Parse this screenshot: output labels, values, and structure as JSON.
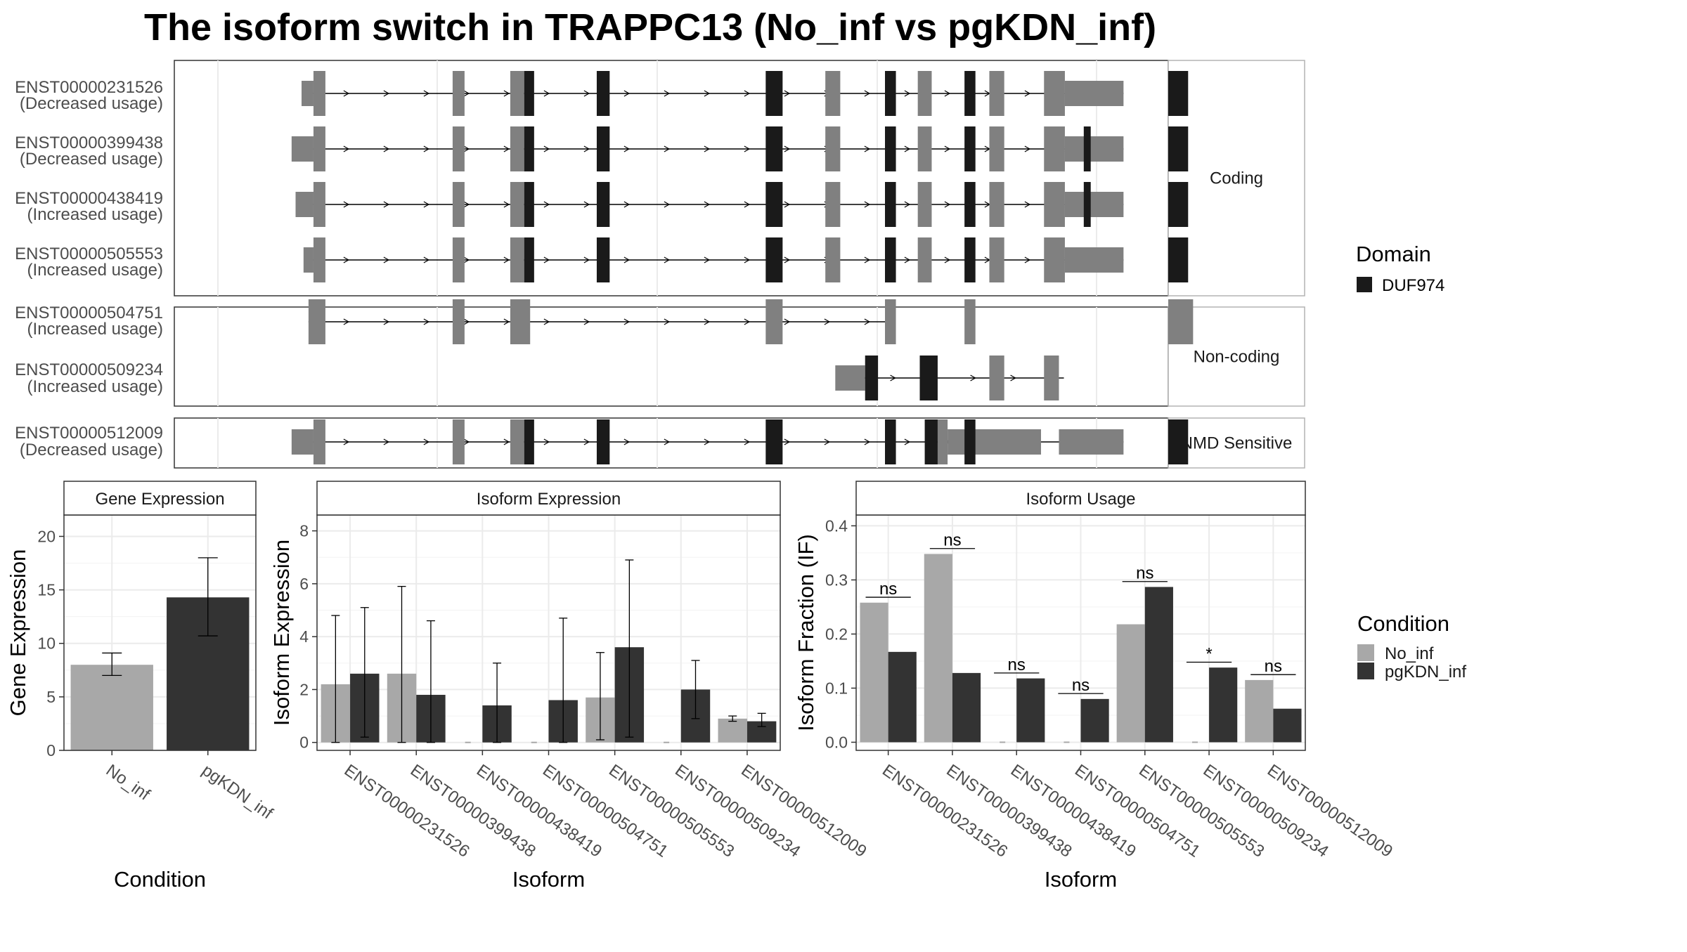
{
  "title": "The isoform switch in TRAPPC13 (No_inf vs pgKDN_inf)",
  "colors": {
    "exon_utr": "#808080",
    "exon_domain": "#1a1a1a",
    "no_inf": "#a8a8a8",
    "pgkdn_inf": "#333333",
    "panel_border": "#333333",
    "grid": "#ebebeb",
    "strip_fill": "#ffffff"
  },
  "structure": {
    "x_range": [
      0,
      100
    ],
    "groups": [
      {
        "label": "Coding",
        "isoforms": [
          {
            "id": "ENST00000231526",
            "usage": "(Decreased usage)",
            "span": [
              13.5,
              95.5
            ],
            "utr": [
              [
                12.8,
                14.0,
                "half"
              ],
              [
                14.0,
                15.2,
                "full"
              ],
              [
                28.0,
                29.2,
                "full"
              ],
              [
                33.8,
                35.2,
                "full"
              ],
              [
                65.5,
                67.0,
                "full"
              ],
              [
                74.8,
                76.2,
                "full"
              ],
              [
                82.0,
                83.5,
                "full"
              ],
              [
                87.5,
                89.6,
                "full"
              ],
              [
                89.6,
                95.5,
                "half"
              ]
            ],
            "domain": [
              [
                35.2,
                36.2
              ],
              [
                42.5,
                43.8
              ],
              [
                59.5,
                61.2
              ],
              [
                71.5,
                72.6
              ],
              [
                79.5,
                80.6
              ],
              [
                100.0,
                102.0
              ],
              [
                110.5,
                111.8
              ]
            ]
          },
          {
            "id": "ENST00000399438",
            "usage": "(Decreased usage)",
            "span": [
              13.5,
              95.5
            ],
            "utr": [
              [
                11.8,
                14.0,
                "half"
              ],
              [
                14.0,
                15.2,
                "full"
              ],
              [
                28.0,
                29.2,
                "full"
              ],
              [
                33.8,
                35.2,
                "full"
              ],
              [
                65.5,
                67.0,
                "full"
              ],
              [
                74.8,
                76.2,
                "full"
              ],
              [
                82.0,
                83.5,
                "full"
              ],
              [
                87.5,
                89.6,
                "full"
              ],
              [
                89.6,
                95.5,
                "half"
              ]
            ],
            "domain": [
              [
                35.2,
                36.2
              ],
              [
                42.5,
                43.8
              ],
              [
                59.5,
                61.2
              ],
              [
                71.5,
                72.6
              ],
              [
                79.5,
                80.6
              ],
              [
                91.5,
                92.2
              ],
              [
                100.0,
                102.0
              ],
              [
                110.5,
                111.8
              ]
            ]
          },
          {
            "id": "ENST00000438419",
            "usage": "(Increased usage)",
            "span": [
              13.5,
              95.5
            ],
            "utr": [
              [
                12.2,
                14.0,
                "half"
              ],
              [
                14.0,
                15.2,
                "full"
              ],
              [
                28.0,
                29.2,
                "full"
              ],
              [
                33.8,
                35.2,
                "full"
              ],
              [
                65.5,
                67.0,
                "full"
              ],
              [
                74.8,
                76.2,
                "full"
              ],
              [
                82.0,
                83.5,
                "full"
              ],
              [
                87.5,
                89.6,
                "full"
              ],
              [
                89.6,
                95.5,
                "half"
              ]
            ],
            "domain": [
              [
                35.2,
                36.2
              ],
              [
                42.5,
                43.8
              ],
              [
                59.5,
                61.2
              ],
              [
                71.5,
                72.6
              ],
              [
                79.5,
                80.6
              ],
              [
                91.5,
                92.2
              ],
              [
                100.0,
                102.0
              ],
              [
                110.5,
                111.8
              ]
            ]
          },
          {
            "id": "ENST00000505553",
            "usage": "(Increased usage)",
            "span": [
              13.5,
              95.5
            ],
            "utr": [
              [
                13.0,
                14.0,
                "half"
              ],
              [
                14.0,
                15.2,
                "full"
              ],
              [
                28.0,
                29.2,
                "full"
              ],
              [
                33.8,
                35.2,
                "full"
              ],
              [
                65.5,
                67.0,
                "full"
              ],
              [
                74.8,
                76.2,
                "full"
              ],
              [
                82.0,
                83.5,
                "full"
              ],
              [
                87.5,
                89.6,
                "full"
              ],
              [
                89.6,
                95.5,
                "half"
              ]
            ],
            "domain": [
              [
                35.2,
                36.2
              ],
              [
                42.5,
                43.8
              ],
              [
                59.5,
                61.2
              ],
              [
                71.5,
                72.6
              ],
              [
                79.5,
                80.6
              ],
              [
                100.0,
                102.0
              ],
              [
                110.5,
                111.8
              ]
            ]
          }
        ]
      },
      {
        "label": "Non-coding",
        "isoforms": [
          {
            "id": "ENST00000504751",
            "usage": "(Increased usage)",
            "span": [
              13.5,
              72.5
            ],
            "utr": [
              [
                13.5,
                15.2,
                "full"
              ],
              [
                28.0,
                29.2,
                "full"
              ],
              [
                33.8,
                35.8,
                "full"
              ],
              [
                59.5,
                61.2,
                "full"
              ],
              [
                71.5,
                72.6,
                "full"
              ],
              [
                79.5,
                80.6,
                "full"
              ],
              [
                100.0,
                102.5,
                "full"
              ]
            ],
            "domain": []
          },
          {
            "id": "ENST00000509234",
            "usage": "(Increased usage)",
            "span": [
              68.5,
              89.5
            ],
            "utr": [
              [
                66.5,
                69.5,
                "half"
              ],
              [
                82.0,
                83.5,
                "full"
              ],
              [
                87.5,
                89.0,
                "full"
              ]
            ],
            "domain": [
              [
                69.5,
                70.8
              ],
              [
                75.0,
                76.8
              ]
            ]
          }
        ]
      },
      {
        "label": "NMD Sensitive",
        "isoforms": [
          {
            "id": "ENST00000512009",
            "usage": "(Decreased usage)",
            "span": [
              13.5,
              95.5
            ],
            "utr": [
              [
                11.8,
                14.0,
                "half"
              ],
              [
                14.0,
                15.2,
                "full"
              ],
              [
                28.0,
                29.2,
                "full"
              ],
              [
                33.8,
                35.2,
                "full"
              ],
              [
                76.8,
                77.8,
                "full"
              ],
              [
                77.8,
                87.2,
                "half"
              ],
              [
                89.0,
                95.5,
                "half"
              ]
            ],
            "domain": [
              [
                35.2,
                36.2
              ],
              [
                42.5,
                43.8
              ],
              [
                59.5,
                61.2
              ],
              [
                71.5,
                72.6
              ],
              [
                79.5,
                80.6
              ],
              [
                100.0,
                102.0
              ],
              [
                110.5,
                111.8
              ],
              [
                75.5,
                76.8
              ]
            ]
          }
        ]
      }
    ]
  },
  "legend_domain": {
    "title": "Domain",
    "items": [
      {
        "label": "DUF974"
      }
    ]
  },
  "legend_condition": {
    "title": "Condition",
    "items": [
      {
        "label": "No_inf"
      },
      {
        "label": "pgKDN_inf"
      }
    ]
  },
  "chart_data": [
    {
      "type": "bar",
      "title": "Gene Expression",
      "xlabel": "Condition",
      "ylabel": "Gene Expression",
      "categories": [
        "No_inf",
        "pgKDN_inf"
      ],
      "values": [
        8.0,
        14.3
      ],
      "err_low": [
        7.0,
        10.7
      ],
      "err_high": [
        9.1,
        18.0
      ],
      "ylim": [
        0,
        22
      ],
      "yticks": [
        0,
        5,
        10,
        15,
        20
      ]
    },
    {
      "type": "bar",
      "title": "Isoform Expression",
      "xlabel": "Isoform",
      "ylabel": "Isoform Expression",
      "categories": [
        "ENST00000231526",
        "ENST00000399438",
        "ENST00000438419",
        "ENST00000504751",
        "ENST00000505553",
        "ENST00000509234",
        "ENST00000512009"
      ],
      "series": [
        {
          "values": [
            2.2,
            2.6,
            0.0,
            0.0,
            1.7,
            0.0,
            0.9
          ],
          "err_low": [
            0.0,
            0.0,
            null,
            null,
            0.1,
            null,
            0.8
          ],
          "err_high": [
            4.8,
            5.9,
            null,
            null,
            3.4,
            null,
            1.0
          ]
        },
        {
          "values": [
            2.6,
            1.8,
            1.4,
            1.6,
            3.6,
            2.0,
            0.8
          ],
          "err_low": [
            0.2,
            0.0,
            0.0,
            0.0,
            0.2,
            0.9,
            0.6
          ],
          "err_high": [
            5.1,
            4.6,
            3.0,
            4.7,
            6.9,
            3.1,
            1.1
          ]
        }
      ],
      "ylim": [
        -0.3,
        8.6
      ],
      "yticks": [
        0,
        2,
        4,
        6,
        8
      ]
    },
    {
      "type": "bar",
      "title": "Isoform Usage",
      "xlabel": "Isoform",
      "ylabel": "Isoform Fraction (IF)",
      "categories": [
        "ENST00000231526",
        "ENST00000399438",
        "ENST00000438419",
        "ENST00000504751",
        "ENST00000505553",
        "ENST00000509234",
        "ENST00000512009"
      ],
      "series": [
        {
          "values": [
            0.258,
            0.348,
            0.0,
            0.0,
            0.218,
            0.0,
            0.115
          ]
        },
        {
          "values": [
            0.167,
            0.128,
            0.118,
            0.08,
            0.287,
            0.138,
            0.062
          ]
        }
      ],
      "significance": [
        "ns",
        "ns",
        "ns",
        "ns",
        "ns",
        "*",
        "ns"
      ],
      "ylim": [
        -0.015,
        0.42
      ],
      "yticks": [
        0.0,
        0.1,
        0.2,
        0.3,
        0.4
      ],
      "ytick_labels": [
        "0.0",
        "0.1",
        "0.2",
        "0.3",
        "0.4"
      ]
    }
  ]
}
